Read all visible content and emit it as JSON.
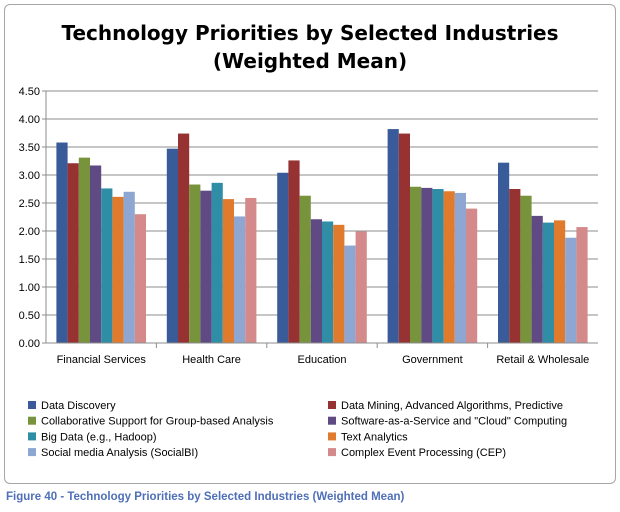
{
  "chart_data": {
    "type": "bar",
    "title": [
      "Technology Priorities by Selected Industries",
      "(Weighted Mean)"
    ],
    "categories": [
      "Financial Services",
      "Health Care",
      "Education",
      "Government",
      "Retail & Wholesale"
    ],
    "ylim": [
      0,
      4.5
    ],
    "yticks": [
      "0.00",
      "0.50",
      "1.00",
      "1.50",
      "2.00",
      "2.50",
      "3.00",
      "3.50",
      "4.00",
      "4.50"
    ],
    "grid": true,
    "legend_position": "bottom",
    "series": [
      {
        "name": "Data Discovery",
        "color": "#3a5b9a",
        "values": [
          3.58,
          3.47,
          3.04,
          3.82,
          3.22
        ]
      },
      {
        "name": "Data Mining, Advanced Algorithms, Predictive",
        "color": "#963232",
        "values": [
          3.21,
          3.74,
          3.26,
          3.74,
          2.75
        ]
      },
      {
        "name": "Collaborative Support for Group-based Analysis",
        "color": "#77933c",
        "values": [
          3.31,
          2.83,
          2.63,
          2.79,
          2.63
        ]
      },
      {
        "name": "Software-as-a-Service and \"Cloud\" Computing",
        "color": "#5f4a84",
        "values": [
          3.17,
          2.72,
          2.21,
          2.77,
          2.27
        ]
      },
      {
        "name": "Big Data (e.g., Hadoop)",
        "color": "#2f8ea6",
        "values": [
          2.76,
          2.86,
          2.17,
          2.75,
          2.15
        ]
      },
      {
        "name": "Text Analytics",
        "color": "#e07b2e",
        "values": [
          2.61,
          2.57,
          2.11,
          2.71,
          2.19
        ]
      },
      {
        "name": "Social media Analysis (SocialBI)",
        "color": "#8ea6d2",
        "values": [
          2.7,
          2.26,
          1.74,
          2.68,
          1.88
        ]
      },
      {
        "name": "Complex Event Processing (CEP)",
        "color": "#d48a8a",
        "values": [
          2.3,
          2.59,
          1.99,
          2.4,
          2.07
        ]
      }
    ]
  },
  "caption": "Figure 40 - Technology Priorities by Selected Industries (Weighted Mean)"
}
